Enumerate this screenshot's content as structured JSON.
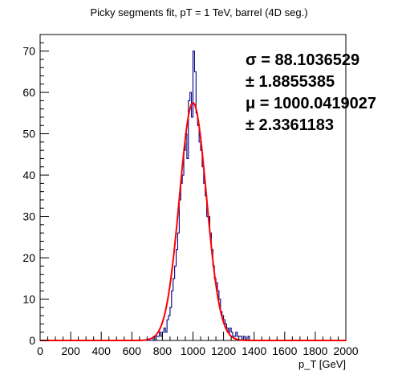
{
  "chart_data": {
    "type": "histogram",
    "title": "Picky segments fit, pT = 1 TeV, barrel (4D seg.)",
    "xlabel": "p_T [GeV]",
    "ylabel": "",
    "xlim": [
      0,
      2000
    ],
    "ylim": [
      0,
      74
    ],
    "x_ticks": [
      0,
      200,
      400,
      600,
      800,
      1000,
      1200,
      1400,
      1600,
      1800,
      2000
    ],
    "y_ticks": [
      0,
      10,
      20,
      30,
      40,
      50,
      60,
      70
    ],
    "grid": false,
    "legend": "none",
    "bin_width": 10,
    "series": [
      {
        "kind": "histogram",
        "color": "#000080",
        "bins": [
          [
            700,
            0
          ],
          [
            710,
            0
          ],
          [
            720,
            0
          ],
          [
            730,
            0
          ],
          [
            740,
            1
          ],
          [
            750,
            0
          ],
          [
            760,
            1
          ],
          [
            770,
            1
          ],
          [
            780,
            2
          ],
          [
            790,
            1
          ],
          [
            800,
            2
          ],
          [
            810,
            3
          ],
          [
            820,
            2
          ],
          [
            830,
            5
          ],
          [
            840,
            6
          ],
          [
            850,
            8
          ],
          [
            860,
            12
          ],
          [
            870,
            15
          ],
          [
            880,
            18
          ],
          [
            890,
            22
          ],
          [
            900,
            26
          ],
          [
            910,
            34
          ],
          [
            920,
            38
          ],
          [
            930,
            40
          ],
          [
            940,
            46
          ],
          [
            950,
            50
          ],
          [
            960,
            44
          ],
          [
            970,
            58
          ],
          [
            980,
            60
          ],
          [
            990,
            54
          ],
          [
            1000,
            70
          ],
          [
            1010,
            65
          ],
          [
            1020,
            55
          ],
          [
            1030,
            52
          ],
          [
            1040,
            48
          ],
          [
            1050,
            46
          ],
          [
            1060,
            42
          ],
          [
            1070,
            38
          ],
          [
            1080,
            35
          ],
          [
            1090,
            30
          ],
          [
            1100,
            30
          ],
          [
            1110,
            26
          ],
          [
            1120,
            22
          ],
          [
            1130,
            18
          ],
          [
            1140,
            15
          ],
          [
            1150,
            14
          ],
          [
            1160,
            12
          ],
          [
            1170,
            10
          ],
          [
            1180,
            7
          ],
          [
            1190,
            6
          ],
          [
            1200,
            5
          ],
          [
            1210,
            4
          ],
          [
            1220,
            3
          ],
          [
            1230,
            2
          ],
          [
            1240,
            3
          ],
          [
            1250,
            2
          ],
          [
            1260,
            1
          ],
          [
            1270,
            1
          ],
          [
            1280,
            2
          ],
          [
            1290,
            1
          ],
          [
            1300,
            1
          ],
          [
            1310,
            1
          ],
          [
            1320,
            0
          ],
          [
            1330,
            1
          ],
          [
            1340,
            0
          ],
          [
            1350,
            0
          ],
          [
            1360,
            1
          ],
          [
            1370,
            0
          ],
          [
            1380,
            0
          ],
          [
            1390,
            0
          ],
          [
            1400,
            0
          ]
        ]
      },
      {
        "kind": "gaussian-fit",
        "color": "#ff0000",
        "amplitude": 57.5,
        "mean": 1000.0419027,
        "sigma": 88.1036529
      }
    ],
    "stats": [
      "σ = 88.1036529",
      "± 1.8855385",
      "μ = 1000.0419027",
      "± 2.3361183"
    ]
  }
}
